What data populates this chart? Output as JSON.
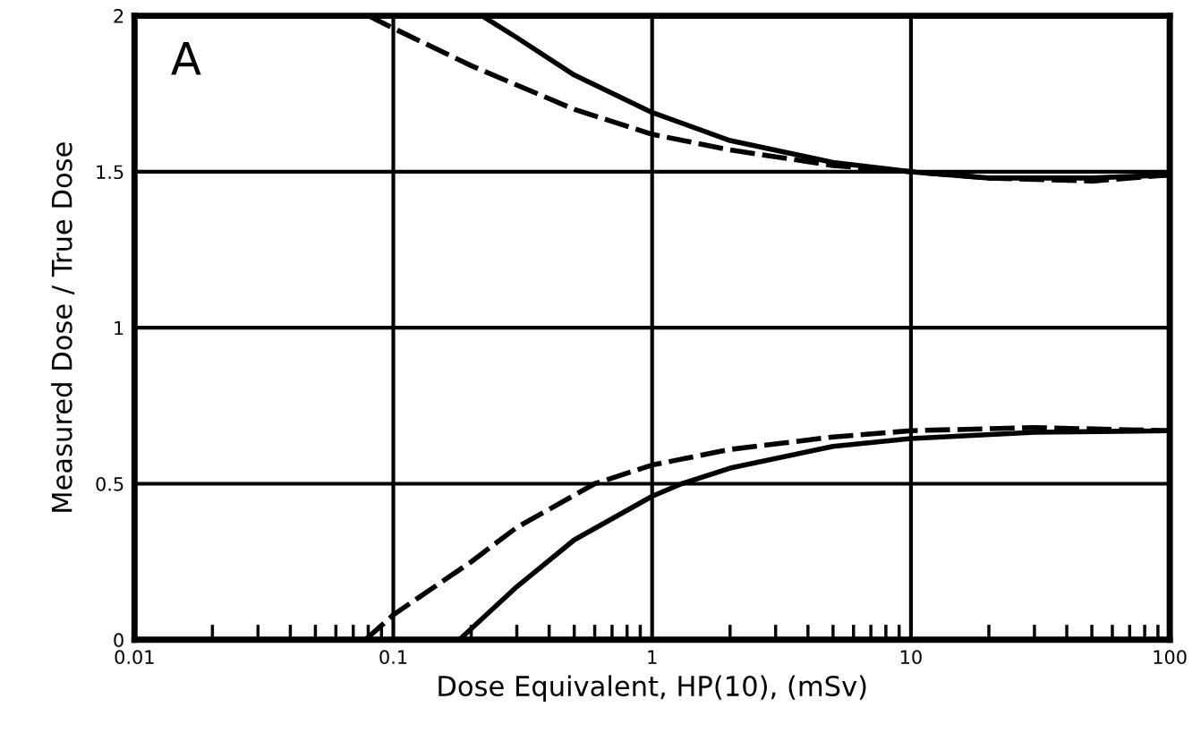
{
  "chart_data": {
    "type": "line",
    "xlabel": "Dose Equivalent, HP(10), (mSv)",
    "ylabel": "Measured Dose / True Dose",
    "annotations": [
      "A"
    ],
    "log": "x",
    "grid": true,
    "xlim": [
      0.01,
      100
    ],
    "xticks": [
      0.01,
      0.1,
      1,
      10,
      100
    ],
    "ylim": [
      0,
      2
    ],
    "yticks": [
      0,
      0.5,
      1,
      1.5,
      2
    ],
    "series": [
      {
        "color": "#000000",
        "line_style": "solid",
        "x": [
          0.22,
          0.3,
          0.5,
          1,
          2,
          5,
          10,
          20,
          50,
          100
        ],
        "values": [
          2.0,
          1.93,
          1.81,
          1.69,
          1.6,
          1.53,
          1.5,
          1.48,
          1.48,
          1.49
        ]
      },
      {
        "color": "#000000",
        "line_style": "dashed",
        "x": [
          0.08,
          0.1,
          0.2,
          0.5,
          1,
          2,
          5,
          10,
          20,
          50,
          100
        ],
        "values": [
          2.0,
          1.96,
          1.84,
          1.7,
          1.62,
          1.57,
          1.52,
          1.5,
          1.48,
          1.47,
          1.49
        ]
      },
      {
        "color": "#000000",
        "line_style": "dashed",
        "x": [
          0.078,
          0.1,
          0.2,
          0.3,
          0.6,
          1,
          2,
          5,
          10,
          30,
          100
        ],
        "values": [
          0,
          0.08,
          0.25,
          0.36,
          0.5,
          0.56,
          0.61,
          0.65,
          0.67,
          0.68,
          0.67
        ]
      },
      {
        "color": "#000000",
        "line_style": "solid",
        "x": [
          0.18,
          0.3,
          0.5,
          1,
          1.3,
          2,
          5,
          10,
          30,
          100
        ],
        "values": [
          0,
          0.17,
          0.32,
          0.46,
          0.5,
          0.55,
          0.62,
          0.645,
          0.665,
          0.67
        ]
      }
    ]
  }
}
